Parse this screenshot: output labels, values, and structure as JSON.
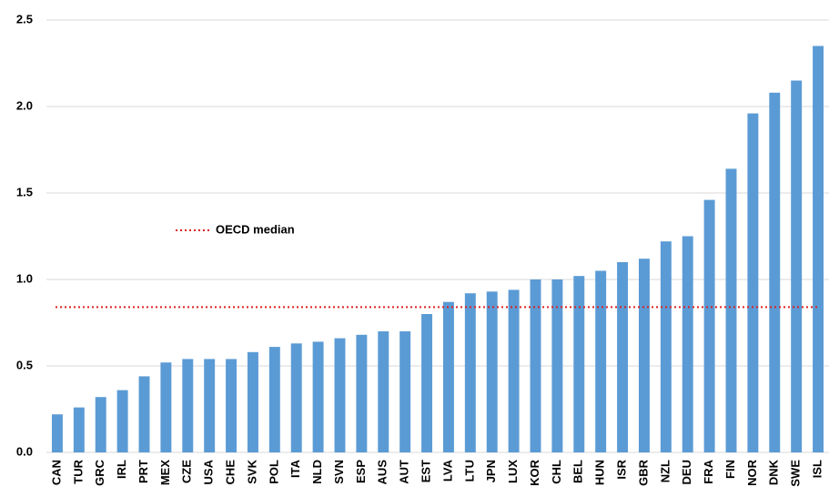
{
  "chart_data": {
    "type": "bar",
    "categories": [
      "CAN",
      "TUR",
      "GRC",
      "IRL",
      "PRT",
      "MEX",
      "CZE",
      "USA",
      "CHE",
      "SVK",
      "POL",
      "ITA",
      "NLD",
      "SVN",
      "ESP",
      "AUS",
      "AUT",
      "EST",
      "LVA",
      "LTU",
      "JPN",
      "LUX",
      "KOR",
      "CHL",
      "BEL",
      "HUN",
      "ISR",
      "GBR",
      "NZL",
      "DEU",
      "FRA",
      "FIN",
      "NOR",
      "DNK",
      "SWE",
      "ISL"
    ],
    "values": [
      0.22,
      0.26,
      0.32,
      0.36,
      0.44,
      0.52,
      0.54,
      0.54,
      0.54,
      0.58,
      0.61,
      0.63,
      0.64,
      0.66,
      0.68,
      0.7,
      0.7,
      0.8,
      0.87,
      0.92,
      0.93,
      0.94,
      1.0,
      1.0,
      1.02,
      1.05,
      1.1,
      1.12,
      1.22,
      1.25,
      1.46,
      1.64,
      1.96,
      2.08,
      2.15,
      2.35
    ],
    "color": "#5b9bd5",
    "median": 0.84,
    "median_label": "OECD median",
    "median_color": "#e02020",
    "ylim": [
      0,
      2.5
    ],
    "yticks": [
      {
        "value": 0,
        "label": "0.0"
      },
      0.5,
      {
        "value": 1,
        "label": "1.0"
      },
      1.5,
      {
        "value": 2,
        "label": "2.0"
      },
      2.5
    ],
    "grid": true
  }
}
